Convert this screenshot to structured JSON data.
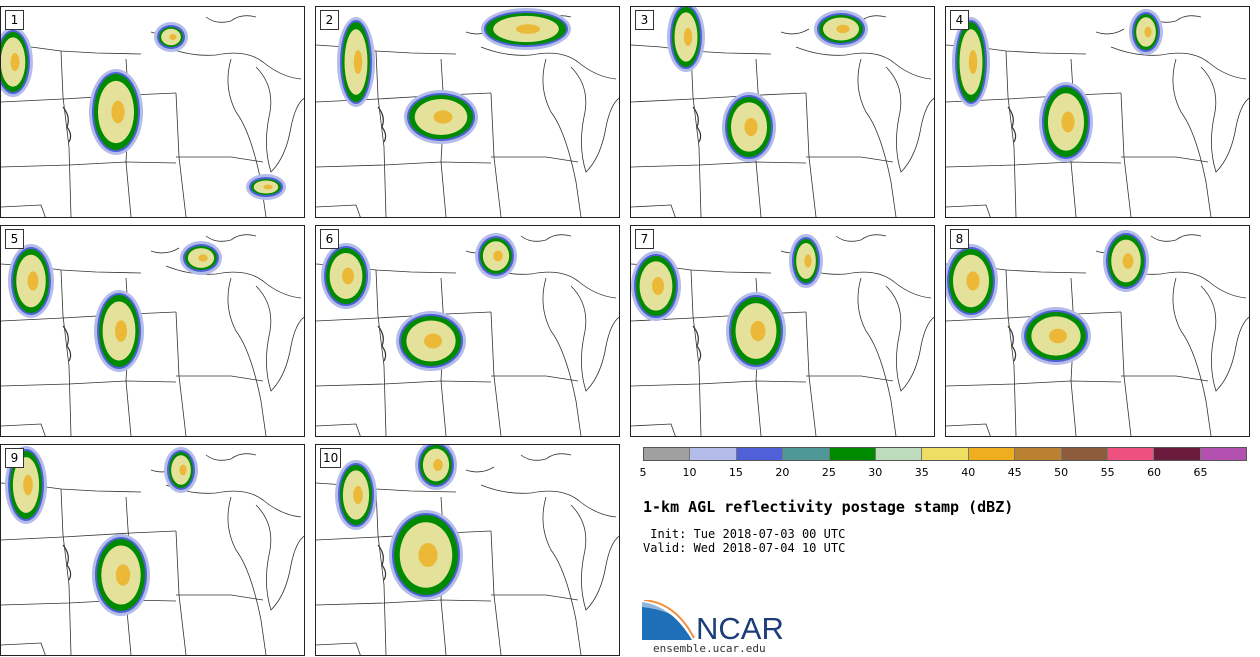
{
  "panels": [
    {
      "label": "1"
    },
    {
      "label": "2"
    },
    {
      "label": "3"
    },
    {
      "label": "4"
    },
    {
      "label": "5"
    },
    {
      "label": "6"
    },
    {
      "label": "7"
    },
    {
      "label": "8"
    },
    {
      "label": "9"
    },
    {
      "label": "10"
    }
  ],
  "colorbar": {
    "colors": [
      "#a0a0a0",
      "#b4bcea",
      "#4f60d8",
      "#4f9898",
      "#008a00",
      "#bcdcbc",
      "#eede64",
      "#eeae1e",
      "#bb8030",
      "#8d5c3c",
      "#ee5080",
      "#6a1a3a",
      "#b450b0"
    ],
    "ticks": [
      "5",
      "10",
      "15",
      "20",
      "25",
      "30",
      "35",
      "40",
      "45",
      "50",
      "55",
      "60",
      "65"
    ]
  },
  "title": "1-km AGL reflectivity postage stamp (dBZ)",
  "init": " Init: Tue 2018-07-03 00 UTC",
  "valid": "Valid: Wed 2018-07-04 10 UTC",
  "logo": {
    "text": "NCAR",
    "url": "ensemble.ucar.edu"
  }
}
